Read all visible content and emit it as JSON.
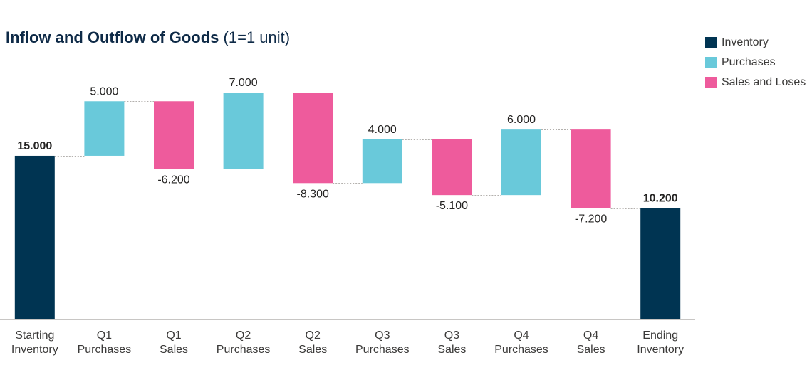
{
  "chart_data": {
    "type": "waterfall",
    "title": "Inflow and Outflow of Goods",
    "subtitle": "(1=1 unit)",
    "categories": [
      "Starting Inventory",
      "Q1 Purchases",
      "Q1 Sales",
      "Q2 Purchases",
      "Q2 Sales",
      "Q3 Purchases",
      "Q3 Sales",
      "Q4 Purchases",
      "Q4 Sales",
      "Ending Inventory"
    ],
    "values": [
      15000,
      5000,
      -6200,
      7000,
      -8300,
      4000,
      -5100,
      6000,
      -7200,
      10200
    ],
    "value_labels": [
      "15.000",
      "5.000",
      "-6.200",
      "7.000",
      "-8.300",
      "4.000",
      "-5.100",
      "6.000",
      "-7.200",
      "10.200"
    ],
    "legend": [
      {
        "name": "Inventory",
        "color": "#003452"
      },
      {
        "name": "Purchases",
        "color": "#69c9da"
      },
      {
        "name": "Sales and Loses",
        "color": "#ee5b9c"
      }
    ]
  }
}
